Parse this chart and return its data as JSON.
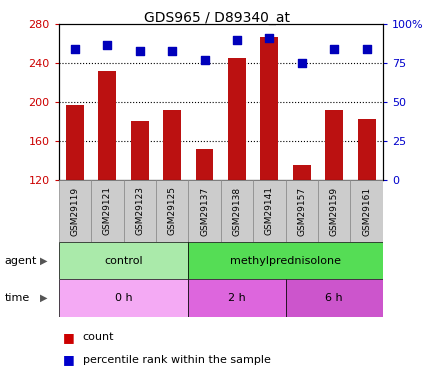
{
  "title": "GDS965 / D89340_at",
  "samples": [
    "GSM29119",
    "GSM29121",
    "GSM29123",
    "GSM29125",
    "GSM29137",
    "GSM29138",
    "GSM29141",
    "GSM29157",
    "GSM29159",
    "GSM29161"
  ],
  "counts": [
    197,
    232,
    181,
    192,
    152,
    245,
    267,
    135,
    192,
    183
  ],
  "percentiles": [
    84,
    87,
    83,
    83,
    77,
    90,
    91,
    75,
    84,
    84
  ],
  "ylim_left": [
    120,
    280
  ],
  "ylim_right": [
    0,
    100
  ],
  "yticks_left": [
    120,
    160,
    200,
    240,
    280
  ],
  "yticks_right": [
    0,
    25,
    50,
    75,
    100
  ],
  "ytick_right_labels": [
    "0",
    "25",
    "50",
    "75",
    "100%"
  ],
  "agent_labels": [
    {
      "label": "control",
      "start": 0,
      "end": 4,
      "color": "#aaeaaa"
    },
    {
      "label": "methylprednisolone",
      "start": 4,
      "end": 10,
      "color": "#55dd55"
    }
  ],
  "time_labels": [
    {
      "label": "0 h",
      "start": 0,
      "end": 4,
      "color": "#f4aaf4"
    },
    {
      "label": "2 h",
      "start": 4,
      "end": 7,
      "color": "#dd66dd"
    },
    {
      "label": "6 h",
      "start": 7,
      "end": 10,
      "color": "#cc55cc"
    }
  ],
  "bar_color": "#bb1111",
  "dot_color": "#0000bb",
  "grid_color": "#000000",
  "left_tick_color": "#cc0000",
  "right_tick_color": "#0000cc",
  "legend_count_color": "#cc0000",
  "legend_pct_color": "#0000cc",
  "agent_row_label": "agent",
  "time_row_label": "time",
  "bar_width": 0.55,
  "dot_size": 40,
  "sample_box_color": "#cccccc",
  "box_outline_color": "#888888"
}
